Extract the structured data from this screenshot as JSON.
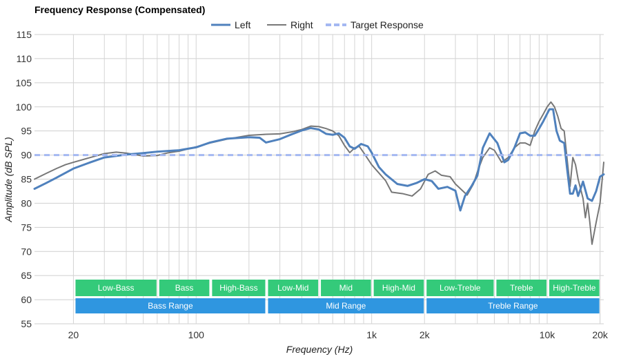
{
  "chart_data": {
    "type": "line",
    "title": "Frequency Response (Compensated)",
    "xlabel": "Frequency (Hz)",
    "ylabel": "Amplitude (dB SPL)",
    "x_scale": "log",
    "xlim": [
      12,
      21000
    ],
    "ylim": [
      55,
      115
    ],
    "y_ticks": [
      55,
      60,
      65,
      70,
      75,
      80,
      85,
      90,
      95,
      100,
      105,
      110,
      115
    ],
    "x_ticks": [
      {
        "value": 20,
        "label": "20"
      },
      {
        "value": 100,
        "label": "100"
      },
      {
        "value": 1000,
        "label": "1k"
      },
      {
        "value": 2000,
        "label": "2k"
      },
      {
        "value": 10000,
        "label": "10k"
      },
      {
        "value": 20000,
        "label": "20k"
      }
    ],
    "grid": true,
    "legend_position": "top-center",
    "series": [
      {
        "name": "Left",
        "color": "#4F81BD",
        "style": "solid",
        "points": [
          [
            12,
            83
          ],
          [
            14,
            84.2
          ],
          [
            16,
            85.3
          ],
          [
            18,
            86.3
          ],
          [
            20,
            87.2
          ],
          [
            25,
            88.5
          ],
          [
            30,
            89.5
          ],
          [
            40,
            90.1
          ],
          [
            50,
            90.4
          ],
          [
            60,
            90.7
          ],
          [
            80,
            91
          ],
          [
            100,
            91.6
          ],
          [
            120,
            92.6
          ],
          [
            150,
            93.4
          ],
          [
            200,
            93.7
          ],
          [
            230,
            93.6
          ],
          [
            250,
            92.6
          ],
          [
            300,
            93.3
          ],
          [
            350,
            94.3
          ],
          [
            400,
            95.1
          ],
          [
            450,
            95.6
          ],
          [
            500,
            95.3
          ],
          [
            550,
            94.4
          ],
          [
            600,
            94.2
          ],
          [
            650,
            94.5
          ],
          [
            700,
            93.6
          ],
          [
            750,
            91.8
          ],
          [
            800,
            91.3
          ],
          [
            870,
            92.3
          ],
          [
            950,
            91.8
          ],
          [
            1000,
            90.5
          ],
          [
            1100,
            87.5
          ],
          [
            1200,
            86
          ],
          [
            1400,
            84
          ],
          [
            1600,
            83.6
          ],
          [
            1800,
            84.2
          ],
          [
            2000,
            85
          ],
          [
            2200,
            84.6
          ],
          [
            2400,
            83
          ],
          [
            2700,
            83.4
          ],
          [
            3000,
            82.6
          ],
          [
            3200,
            78.5
          ],
          [
            3400,
            81.5
          ],
          [
            3700,
            83.5
          ],
          [
            4000,
            85.7
          ],
          [
            4300,
            91.5
          ],
          [
            4700,
            94.5
          ],
          [
            5200,
            92.5
          ],
          [
            5700,
            88.5
          ],
          [
            6000,
            89
          ],
          [
            6500,
            91.5
          ],
          [
            7000,
            94.5
          ],
          [
            7500,
            94.7
          ],
          [
            8000,
            94
          ],
          [
            8500,
            94
          ],
          [
            9000,
            95.5
          ],
          [
            9500,
            97
          ],
          [
            10300,
            99.5
          ],
          [
            10800,
            99.5
          ],
          [
            11300,
            95
          ],
          [
            11800,
            93
          ],
          [
            12500,
            92.5
          ],
          [
            13000,
            87
          ],
          [
            13500,
            82
          ],
          [
            14000,
            82
          ],
          [
            14500,
            83.7
          ],
          [
            15000,
            81.5
          ],
          [
            15500,
            83
          ],
          [
            16000,
            84.5
          ],
          [
            17000,
            81
          ],
          [
            18000,
            80.5
          ],
          [
            19000,
            82.5
          ],
          [
            20000,
            85.5
          ],
          [
            21000,
            86
          ]
        ]
      },
      {
        "name": "Right",
        "color": "#777777",
        "style": "solid",
        "points": [
          [
            12,
            85
          ],
          [
            14,
            86.2
          ],
          [
            16,
            87.2
          ],
          [
            18,
            88
          ],
          [
            20,
            88.5
          ],
          [
            25,
            89.5
          ],
          [
            30,
            90.3
          ],
          [
            35,
            90.6
          ],
          [
            40,
            90.4
          ],
          [
            50,
            89.8
          ],
          [
            60,
            89.9
          ],
          [
            70,
            90.5
          ],
          [
            80,
            90.8
          ],
          [
            100,
            91.7
          ],
          [
            120,
            92.5
          ],
          [
            150,
            93.3
          ],
          [
            200,
            94.1
          ],
          [
            250,
            94.3
          ],
          [
            300,
            94.4
          ],
          [
            350,
            94.8
          ],
          [
            400,
            95.3
          ],
          [
            450,
            96
          ],
          [
            500,
            95.9
          ],
          [
            550,
            95.5
          ],
          [
            600,
            95
          ],
          [
            650,
            94
          ],
          [
            700,
            92
          ],
          [
            750,
            90.5
          ],
          [
            800,
            91.5
          ],
          [
            850,
            91.8
          ],
          [
            900,
            90.5
          ],
          [
            1000,
            88
          ],
          [
            1200,
            84.7
          ],
          [
            1300,
            82.3
          ],
          [
            1500,
            82
          ],
          [
            1700,
            81.5
          ],
          [
            1900,
            83
          ],
          [
            2100,
            86
          ],
          [
            2300,
            86.7
          ],
          [
            2500,
            85.8
          ],
          [
            2800,
            85.5
          ],
          [
            3000,
            84
          ],
          [
            3500,
            81.7
          ],
          [
            3800,
            84
          ],
          [
            4000,
            86.5
          ],
          [
            4300,
            89.5
          ],
          [
            4700,
            91.5
          ],
          [
            5000,
            91
          ],
          [
            5500,
            88.5
          ],
          [
            6000,
            89.5
          ],
          [
            6500,
            91.5
          ],
          [
            7000,
            92.5
          ],
          [
            7500,
            92.5
          ],
          [
            8000,
            92
          ],
          [
            8500,
            95
          ],
          [
            9000,
            97
          ],
          [
            9500,
            98.5
          ],
          [
            10000,
            100
          ],
          [
            10500,
            101
          ],
          [
            11000,
            100
          ],
          [
            11500,
            98
          ],
          [
            12000,
            95.5
          ],
          [
            12500,
            95
          ],
          [
            13000,
            89
          ],
          [
            13500,
            83.5
          ],
          [
            14000,
            89.5
          ],
          [
            14500,
            88
          ],
          [
            15000,
            85
          ],
          [
            16000,
            81
          ],
          [
            16500,
            77
          ],
          [
            17000,
            80
          ],
          [
            17500,
            76
          ],
          [
            18000,
            71.5
          ],
          [
            19000,
            76
          ],
          [
            20000,
            80
          ],
          [
            21000,
            88.5
          ]
        ]
      },
      {
        "name": "Target Response",
        "color": "#A4B8F2",
        "style": "dashed",
        "points": [
          [
            12,
            90
          ],
          [
            21000,
            90
          ]
        ]
      }
    ],
    "range_bands": [
      {
        "label": "Low-Bass",
        "from": 20,
        "to": 60,
        "row": "upper",
        "color": "#34CA7A"
      },
      {
        "label": "Bass",
        "from": 60,
        "to": 120,
        "row": "upper",
        "color": "#34CA7A"
      },
      {
        "label": "High-Bass",
        "from": 120,
        "to": 250,
        "row": "upper",
        "color": "#34CA7A"
      },
      {
        "label": "Low-Mid",
        "from": 250,
        "to": 500,
        "row": "upper",
        "color": "#34CA7A"
      },
      {
        "label": "Mid",
        "from": 500,
        "to": 1000,
        "row": "upper",
        "color": "#34CA7A"
      },
      {
        "label": "High-Mid",
        "from": 1000,
        "to": 2000,
        "row": "upper",
        "color": "#34CA7A"
      },
      {
        "label": "Low-Treble",
        "from": 2000,
        "to": 5000,
        "row": "upper",
        "color": "#34CA7A"
      },
      {
        "label": "Treble",
        "from": 5000,
        "to": 10000,
        "row": "upper",
        "color": "#34CA7A"
      },
      {
        "label": "High-Treble",
        "from": 10000,
        "to": 20000,
        "row": "upper",
        "color": "#34CA7A"
      },
      {
        "label": "Bass Range",
        "from": 20,
        "to": 250,
        "row": "lower",
        "color": "#2F96E0"
      },
      {
        "label": "Mid Range",
        "from": 250,
        "to": 2000,
        "row": "lower",
        "color": "#2F96E0"
      },
      {
        "label": "Treble Range",
        "from": 2000,
        "to": 20000,
        "row": "lower",
        "color": "#2F96E0"
      }
    ]
  }
}
